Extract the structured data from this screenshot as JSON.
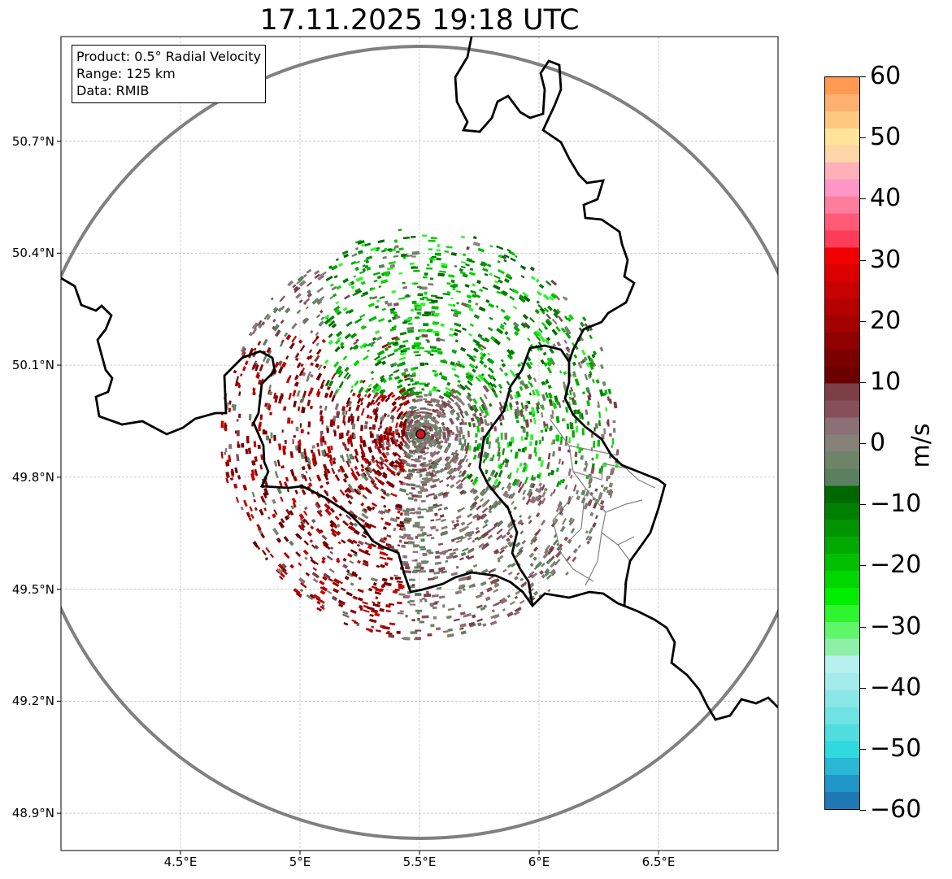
{
  "title": "17.11.2025 19:18 UTC",
  "info_box": {
    "product": "Product: 0.5° Radial Velocity",
    "range": "Range: 125 km",
    "data": "Data: RMIB"
  },
  "map": {
    "lon_range": [
      4.0,
      7.0
    ],
    "lat_range": [
      48.8,
      50.98
    ],
    "lat_ticks": [
      "50.7°N",
      "50.4°N",
      "50.1°N",
      "49.8°N",
      "49.5°N",
      "49.2°N",
      "48.9°N"
    ],
    "lat_values": [
      50.7,
      50.4,
      50.1,
      49.8,
      49.5,
      49.2,
      48.9
    ],
    "lon_ticks": [
      "4.5°E",
      "5°E",
      "5.5°E",
      "6°E",
      "6.5°E"
    ],
    "lon_values": [
      4.5,
      5.0,
      5.5,
      6.0,
      6.5
    ],
    "radar_site": {
      "lon": 5.505,
      "lat": 49.915
    },
    "range_ring_color": "#808080",
    "border_color": "#000000",
    "region_border_color": "#808080",
    "gridlines": true
  },
  "colorbar": {
    "unit": "m/s",
    "range": [
      -60,
      60
    ],
    "ticks": [
      "60",
      "50",
      "40",
      "30",
      "20",
      "10",
      "0",
      "−10",
      "−20",
      "−30",
      "−40",
      "−50",
      "−60"
    ],
    "tick_values": [
      60,
      50,
      40,
      30,
      20,
      10,
      0,
      -10,
      -20,
      -30,
      -40,
      -50,
      -60
    ],
    "colors": [
      "#1f77b4",
      "#2196c9",
      "#29b7d6",
      "#2fd9de",
      "#4fdde0",
      "#6fe2e3",
      "#8be7e7",
      "#a3eceb",
      "#b8f0ef",
      "#8ef0a6",
      "#5ef76a",
      "#2ef52e",
      "#00ee00",
      "#00d600",
      "#00c000",
      "#00aa00",
      "#009400",
      "#007f00",
      "#006800",
      "#5a8060",
      "#6e8469",
      "#858078",
      "#8c6f77",
      "#874f59",
      "#7a3f47",
      "#6b0000",
      "#7d0000",
      "#8f0000",
      "#a30000",
      "#b60000",
      "#c90000",
      "#dd0000",
      "#f20000",
      "#ff3c58",
      "#ff5a78",
      "#ff7d9c",
      "#ff96c8",
      "#ffb0b8",
      "#ffd6a8",
      "#ffe49a",
      "#ffc880",
      "#ffb070",
      "#ff9a50"
    ]
  }
}
